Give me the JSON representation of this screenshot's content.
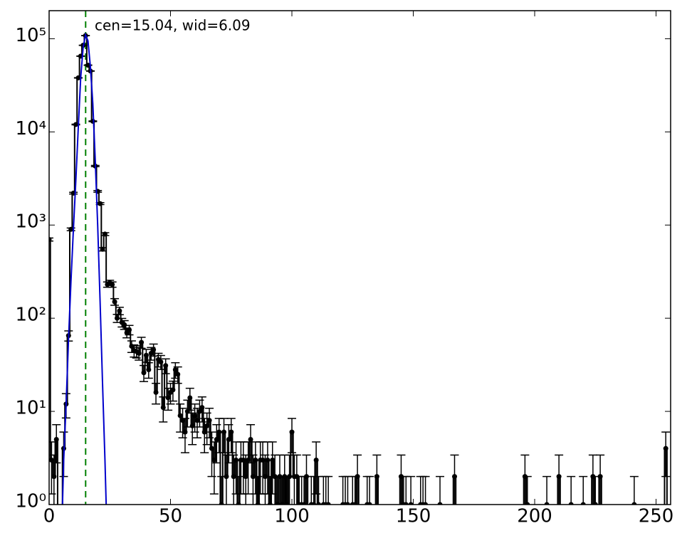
{
  "chart_data": {
    "type": "errorbar",
    "annotation": "cen=15.04, wid=6.09",
    "annotation_color": "#008000",
    "vline": {
      "x": 15.04,
      "color": "#008000"
    },
    "log_y": true,
    "xlim": [
      0,
      256
    ],
    "ylim": [
      1,
      200000
    ],
    "xticks": [
      0,
      50,
      100,
      150,
      200,
      250
    ],
    "yticks": [
      {
        "value": 1,
        "label": "10⁰"
      },
      {
        "value": 10,
        "label": "10¹"
      },
      {
        "value": 100,
        "label": "10²"
      },
      {
        "value": 1000,
        "label": "10³"
      },
      {
        "value": 10000,
        "label": "10⁴"
      },
      {
        "value": 100000,
        "label": "10⁵"
      }
    ],
    "series": [
      {
        "color": "#000000",
        "x": [
          0,
          1,
          2,
          3,
          6,
          7,
          8,
          9,
          10,
          11,
          12,
          13,
          14,
          15,
          16,
          17,
          18,
          19,
          20,
          21,
          22,
          23,
          24,
          25,
          26,
          27,
          28,
          29,
          30,
          31,
          32,
          33,
          34,
          35,
          36,
          37,
          38,
          39,
          40,
          41,
          42,
          43,
          44,
          45,
          46,
          47,
          48,
          49,
          50,
          51,
          52,
          53,
          54,
          55,
          56,
          57,
          58,
          59,
          60,
          61,
          62,
          63,
          64,
          65,
          66,
          67,
          68,
          69,
          70,
          71,
          72,
          73,
          74,
          75,
          76,
          77,
          78,
          79,
          80,
          81,
          82,
          83,
          84,
          85,
          86,
          87,
          88,
          89,
          90,
          91,
          92,
          93,
          94,
          95,
          96,
          97,
          98,
          99,
          100,
          101,
          102,
          103,
          104,
          105,
          106,
          108,
          109,
          110,
          111,
          113,
          114,
          115,
          121,
          122,
          123,
          125,
          126,
          127,
          131,
          132,
          135,
          145,
          146,
          147,
          149,
          153,
          154,
          155,
          161,
          167,
          196,
          197,
          205,
          210,
          215,
          220,
          224,
          225,
          227,
          241,
          254
        ],
        "values": [
          700,
          3,
          2,
          5,
          4,
          12,
          65,
          900,
          2200,
          12000,
          38000,
          65000,
          85000,
          108000,
          52000,
          45000,
          13000,
          4300,
          2300,
          1700,
          550,
          800,
          230,
          240,
          230,
          150,
          100,
          120,
          90,
          85,
          70,
          75,
          50,
          45,
          44,
          42,
          55,
          26,
          40,
          28,
          42,
          46,
          16,
          36,
          34,
          11,
          31,
          14,
          16,
          17,
          28,
          25,
          9,
          8,
          6,
          10,
          14,
          7,
          9,
          8,
          10,
          11,
          6,
          7,
          8,
          4,
          3,
          5,
          6,
          1,
          6,
          2,
          5,
          6,
          2,
          3,
          1,
          3,
          3,
          2,
          3,
          5,
          2,
          3,
          1,
          3,
          3,
          2,
          3,
          1,
          3,
          2,
          1,
          2,
          1,
          2,
          1,
          2,
          6,
          2,
          2,
          1,
          1,
          1,
          2,
          1,
          1,
          3,
          1,
          1,
          1,
          1,
          1,
          1,
          1,
          1,
          1,
          2,
          1,
          1,
          2,
          2,
          1,
          1,
          1,
          1,
          1,
          1,
          1,
          2,
          2,
          1,
          1,
          2,
          1,
          1,
          2,
          1,
          2,
          1,
          4
        ],
        "errors": [
          26.5,
          1.7,
          1.4,
          2.2,
          2,
          3.5,
          8.1,
          30,
          47,
          110,
          195,
          255,
          292,
          329,
          228,
          212,
          114,
          66,
          48,
          41,
          23,
          28,
          15,
          15.5,
          15,
          12.2,
          10,
          11,
          9.5,
          9.2,
          8.4,
          8.7,
          7.1,
          6.7,
          6.6,
          6.5,
          7.4,
          5.1,
          6.3,
          5.3,
          6.5,
          6.8,
          4,
          6,
          5.8,
          3.3,
          5.6,
          3.7,
          4,
          4.1,
          5.3,
          5,
          3,
          2.8,
          2.4,
          3.2,
          3.7,
          2.6,
          3,
          2.8,
          3.2,
          3.3,
          2.4,
          2.6,
          2.8,
          2,
          1.7,
          2.2,
          2.4,
          1,
          2.4,
          1.4,
          2.2,
          2.4,
          1.4,
          1.7,
          1,
          1.7,
          1.7,
          1.4,
          1.7,
          2.2,
          1.4,
          1.7,
          1,
          1.7,
          1.7,
          1.4,
          1.7,
          1,
          1.7,
          1.4,
          1,
          1.4,
          1,
          1.4,
          1,
          1.4,
          2.4,
          1.4,
          1.4,
          1,
          1,
          1,
          1.4,
          1,
          1,
          1.7,
          1,
          1,
          1,
          1,
          1,
          1,
          1,
          1,
          1,
          1.4,
          1,
          1,
          1.4,
          1.4,
          1,
          1,
          1,
          1,
          1,
          1,
          1,
          1.4,
          1.4,
          1,
          1,
          1.4,
          1,
          1,
          1.4,
          1,
          1.4,
          1,
          2
        ]
      }
    ],
    "fit": {
      "color": "#0000cc",
      "x": [
        5.5,
        6,
        7,
        8,
        9,
        10,
        11,
        12,
        13,
        14,
        15,
        16,
        17,
        18,
        19,
        20,
        21,
        22,
        23,
        23.5
      ],
      "values": [
        1,
        3,
        12,
        60,
        250,
        900,
        3000,
        11000,
        38000,
        80000,
        110000,
        95000,
        50000,
        20000,
        5000,
        1000,
        150,
        20,
        3,
        1
      ]
    }
  }
}
